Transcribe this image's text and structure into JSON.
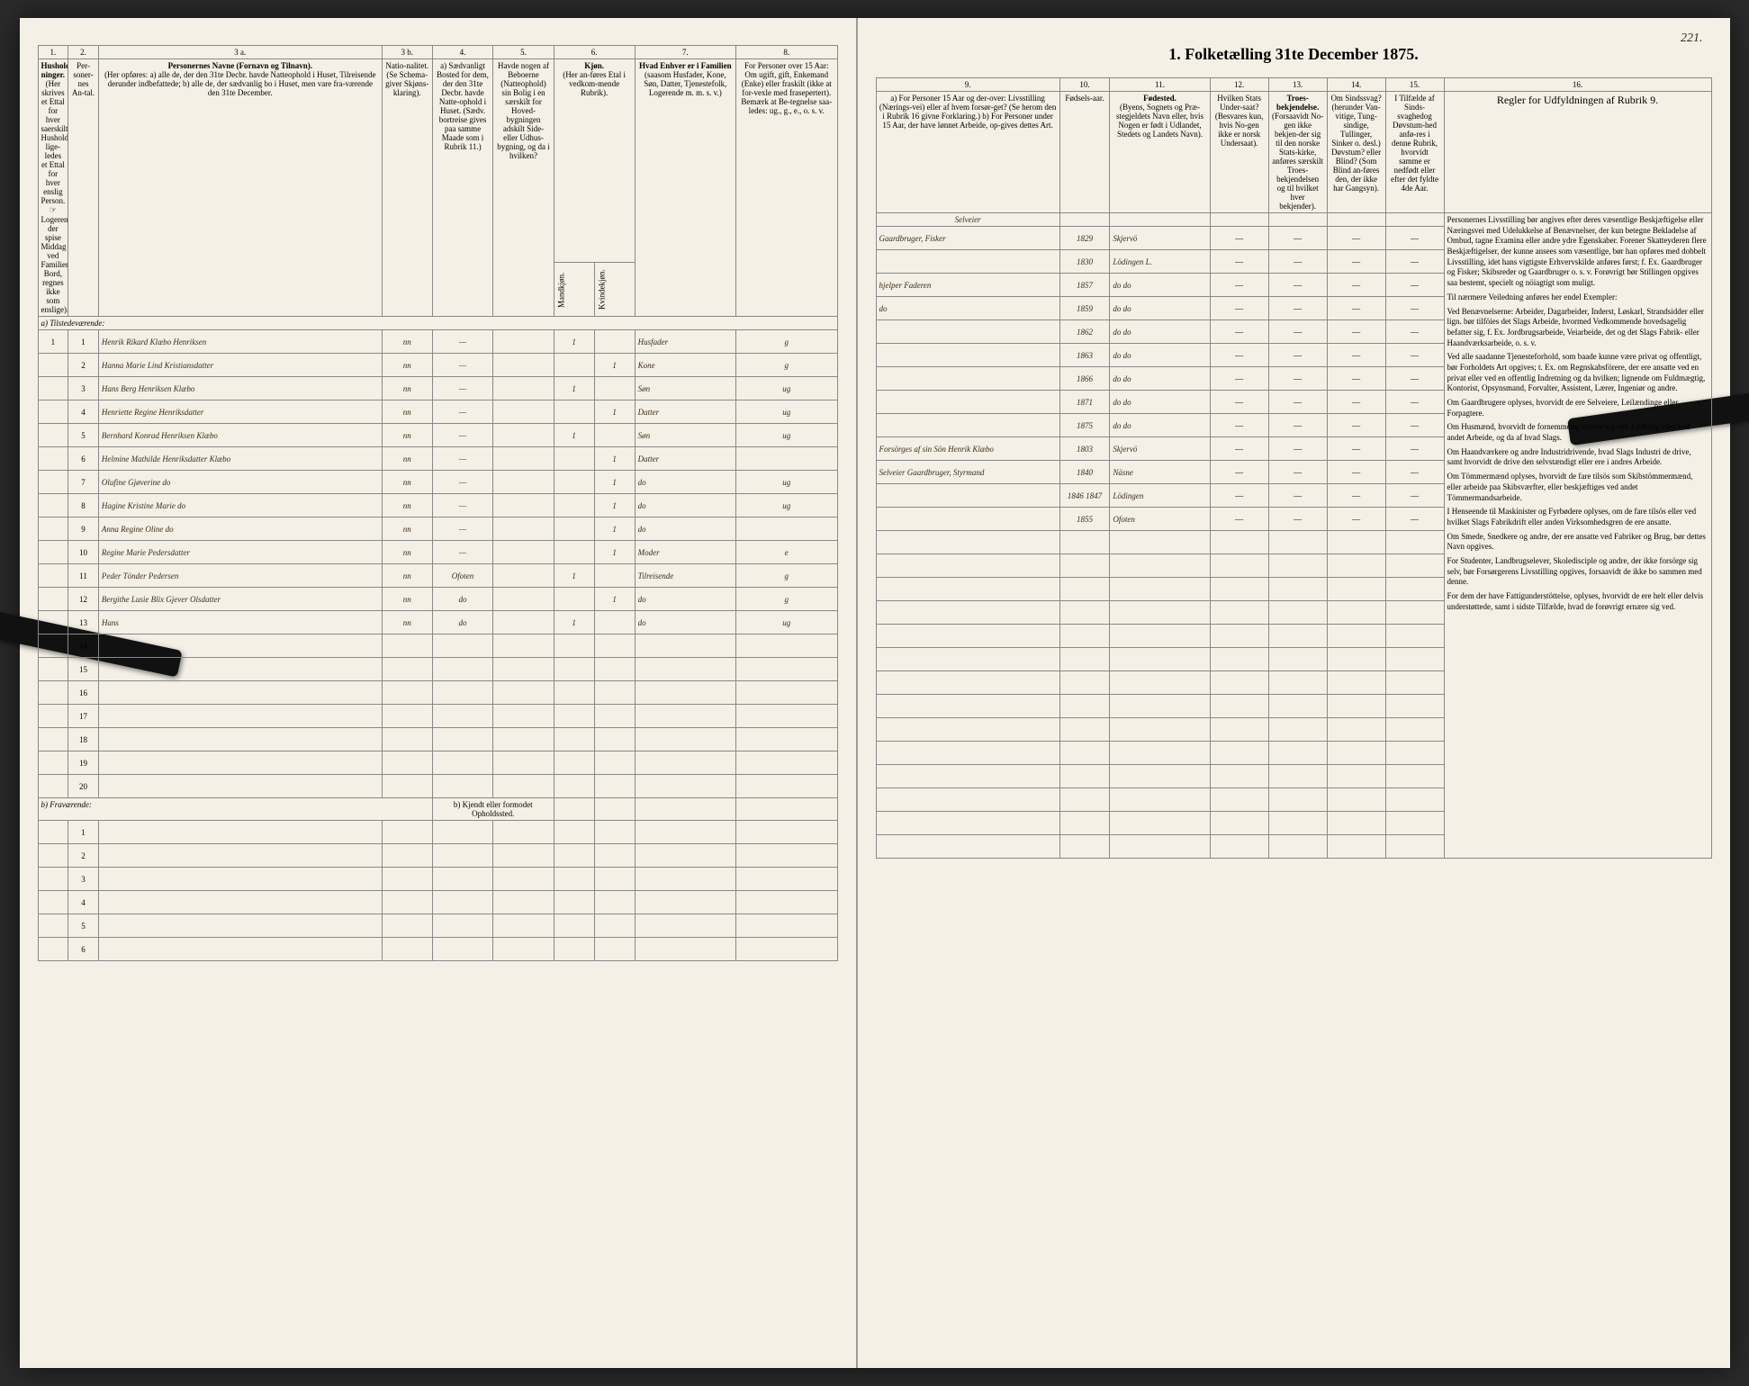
{
  "title": "1. Folketælling 31te December 1875.",
  "page_number": "221.",
  "columns_left": {
    "nums": [
      "1.",
      "2.",
      "3 a.",
      "3 b.",
      "4.",
      "5.",
      "6.",
      "7.",
      "8."
    ],
    "h1": "Hushold-\nninger.",
    "h1_sub": "(Her skrives et Ettal for hver saerskilt Husholdning; lige-ledes et Ettal for hver enslig Person.",
    "h1_note": "Logerende, der spise Middag ved Familiens Bord, regnes ikke som enslige).",
    "h2": "Per-soner-nes An-tal.",
    "h3a": "Personernes Navne (Fornavn og Tilnavn).",
    "h3a_sub": "(Her opføres:\na) alle de, der den 31te Decbr. havde Natteophold i Huset, Tilreisende derunder indbefattede;\nb) alle de, der sædvanlig bo i Huset, men vare fra-værende den 31te December.",
    "h3b": "Natio-nalitet.",
    "h3b_sub": "(Se Schema-giver Skjøns-klaring).",
    "h4": "a) Sædvanligt Bosted for dem, der den 31te Decbr. havde Natte-ophold i Huset. (Sædv. bortreise gives paa samme Maade som i Rubrik 11.)",
    "h5": "Havde nogen af Beboerne (Natteophold) sin Bolig i en særskilt for Hoved-bygningen adskilt Side- eller Udhus-bygning, og da i hvilken?",
    "h6": "Kjøn.",
    "h6_m": "Mandkjøn.",
    "h6_k": "Kvindekjøn.",
    "h7": "(Her an-føres Etal i vedkom-mende Rubrik).",
    "h7_main": "Hvad Enhver er i Familien",
    "h7_sub": "(saasom Husfader, Kone, Søn, Datter, Tjenestefolk, Logerende m. m. s. v.)",
    "h8": "For Personer over 15 Aar: Om ugift, gift, Enkemand (Enke) eller fraskilt (ikke at for-vexle med frasepertert). Bemærk at Be-tegnelse saa-ledes: ug., g., e., o. s. v."
  },
  "columns_right": {
    "nums": [
      "9.",
      "10.",
      "11.",
      "12.",
      "13.",
      "14.",
      "15.",
      "16."
    ],
    "h9": "a) For Personer 15 Aar og der-over: Livsstilling (Nærings-vei) eller af hvem forsør-get? (Se herom den i Rubrik 16 givne Forklaring.)\nb) For Personer under 15 Aar, der have lønnet Arbeide, op-gives dettes Art.",
    "h10": "Fødsels-aar.",
    "h11": "Fødested.",
    "h11_sub": "(Byens, Sognets og Præ-stegjeldets Navn eller, hvis Nogen er født i Udlandet, Stedets og Landets Navn).",
    "h12": "Hvilken Stats Under-saat?",
    "h12_sub": "(Besvares kun, hvis No-gen ikke er norsk Undersaat).",
    "h13": "Troes-bekjendelse.",
    "h13_sub": "(Forsaavidt No-gen ikke bekjen-der sig til den norske Stats-kirke, anføres særskilt Troes-bekjendelsen og til hvilket hver bekjender).",
    "h14": "Om Sindssvag? (herunder Van-vitige, Tung-sindige, Tullinger, Sinker o. desl.) Døvstum? eller Blind? (Som Blind an-føres den, der ikke har Gangsyn).",
    "h15": "I Tilfælde af Sinds-svaghedog Døvstum-hed anfø-res i denne Rubrik, hvorvidt samme er nedfødt eller efter det fyldte 4de Aar.",
    "h16": "Regler for Udfyldningen\naf\nRubrik 9."
  },
  "sections": {
    "present": "a) Tilstedeværende:",
    "absent": "b) Fraværende:",
    "absent_note": "b) Kjendt eller formodet Opholdssted."
  },
  "selveier": "Selveier",
  "rows": [
    {
      "h": "1",
      "n": "1",
      "name": "Henrik Rikard Klæbo Henriksen",
      "nat": "nn",
      "res": "—",
      "m": "1",
      "k": "",
      "fam": "Husfader",
      "civ": "g",
      "occ": "Gaardbruger, Fisker",
      "yr": "1829",
      "bp": "Skjervö"
    },
    {
      "h": "",
      "n": "2",
      "name": "Hanna Marie Lind Kristiansdatter",
      "nat": "nn",
      "res": "—",
      "m": "",
      "k": "1",
      "fam": "Kone",
      "civ": "g",
      "occ": "",
      "yr": "1830",
      "bp": "Lödingen L."
    },
    {
      "h": "",
      "n": "3",
      "name": "Hans Berg Henriksen Klæbo",
      "nat": "nn",
      "res": "—",
      "m": "1",
      "k": "",
      "fam": "Søn",
      "civ": "ug",
      "occ": "hjelper Faderen",
      "yr": "1857",
      "bp": "do   do"
    },
    {
      "h": "",
      "n": "4",
      "name": "Henriette Regine Henriksdatter",
      "nat": "nn",
      "res": "—",
      "m": "",
      "k": "1",
      "fam": "Datter",
      "civ": "ug",
      "occ": "do",
      "yr": "1859",
      "bp": "do   do"
    },
    {
      "h": "",
      "n": "5",
      "name": "Bernhard Konrad Henriksen Klæbo",
      "nat": "nn",
      "res": "—",
      "m": "1",
      "k": "",
      "fam": "Søn",
      "civ": "ug",
      "occ": "",
      "yr": "1862",
      "bp": "do   do"
    },
    {
      "h": "",
      "n": "6",
      "name": "Helmine Mathilde Henriksdatter Klæbo",
      "nat": "nn",
      "res": "—",
      "m": "",
      "k": "1",
      "fam": "Datter",
      "civ": "",
      "occ": "",
      "yr": "1863",
      "bp": "do   do"
    },
    {
      "h": "",
      "n": "7",
      "name": "Olufine Gjøverine   do",
      "nat": "nn",
      "res": "—",
      "m": "",
      "k": "1",
      "fam": "do",
      "civ": "ug",
      "occ": "",
      "yr": "1866",
      "bp": "do   do"
    },
    {
      "h": "",
      "n": "8",
      "name": "Hagine Kristine Marie   do",
      "nat": "nn",
      "res": "—",
      "m": "",
      "k": "1",
      "fam": "do",
      "civ": "ug",
      "occ": "",
      "yr": "1871",
      "bp": "do   do"
    },
    {
      "h": "",
      "n": "9",
      "name": "Anna Regine Oline   do",
      "nat": "nn",
      "res": "—",
      "m": "",
      "k": "1",
      "fam": "do",
      "civ": "",
      "occ": "",
      "yr": "1875",
      "bp": "do   do"
    },
    {
      "h": "",
      "n": "10",
      "name": "Regine Marie Pedersdatter",
      "nat": "nn",
      "res": "—",
      "m": "",
      "k": "1",
      "fam": "Moder",
      "civ": "e",
      "occ": "Forsörges af sin Sön Henrik Klæbo",
      "yr": "1803",
      "bp": "Skjervö"
    },
    {
      "h": "",
      "n": "11",
      "name": "Peder Tönder Pedersen",
      "nat": "nn",
      "res": "Ofoten",
      "m": "1",
      "k": "",
      "fam": "Tilreisende",
      "civ": "g",
      "occ": "Selveier Gaardbruger, Styrmand",
      "yr": "1840",
      "bp": "Näsne"
    },
    {
      "h": "",
      "n": "12",
      "name": "Bergithe Lusie Blix Gjever Olsdatter",
      "nat": "nn",
      "res": "do",
      "m": "",
      "k": "1",
      "fam": "do",
      "civ": "g",
      "occ": "",
      "yr": "1846 1847",
      "bp": "Lödingen"
    },
    {
      "h": "",
      "n": "13",
      "name": "Hans",
      "nat": "nn",
      "res": "do",
      "m": "1",
      "k": "",
      "fam": "do",
      "civ": "ug",
      "occ": "",
      "yr": "1855",
      "bp": "Ofoten"
    }
  ],
  "empty_present_rows": [
    "14",
    "15",
    "16",
    "17",
    "18",
    "19",
    "20"
  ],
  "empty_absent_rows": [
    "1",
    "2",
    "3",
    "4",
    "5",
    "6"
  ],
  "rules_text": [
    "Personernes Livsstilling bør angives efter deres væsentlige Beskjæftigelse eller Næringsvei med Udelukkelse af Benævnelser, der kun betegne Bekladelse af Ombud, tagne Examina eller andre ydre Egenskaber. Forener Skatteyderen flere Beskjæftigelser, der kunne ansees som væsentlige, bør han opføres med dobbelt Livsstilling, idet hans vigtigste Erhvervskilde anføres først; f. Ex. Gaardbruger og Fisker; Skibsreder og Gaardbruger o. s. v. Forøvrigt bør Stillingen opgives saa bestemt, specielt og nöiagtigt som muligt.",
    "Til nærmere Veiledning anføres her endel Exempler:",
    "Ved Benævnelserne: Arbeider, Dagarbeider, Inderst, Løskarl, Strandsidder eller lign. bør tilföies det Slags Arbeide, hvormed Vedkommende hovedsagelig befatter sig, f. Ex. Jordbrugsarbeide, Veiarbeide, det og det Slags Fabrik- eller Haandværksarbeide, o. s. v.",
    "Ved alle saadanne Tjenesteforhold, som baade kunne være privat og offentligt, bør Forholdets Art opgives; t. Ex. om Regnskabsförere, der ere ansatte ved en privat eller ved en offentlig Indretning og da hvilken; lignende om Fuldmægtig, Kontorist, Opsynsmand, Forvalter, Assistent, Lærer, Ingeniør og andre.",
    "Om Gaardbrugere oplyses, hvorvidt de ere Selveiere, Leilændinge eller Forpagtere.",
    "Om Husmænd, hvorvidt de fornemmelig ernære sig ved Jordbrug eller ved andet Arbeide, og da af hvad Slags.",
    "Om Haandværkere og andre Industridrivende, hvad Slags Industri de drive, samt hvorvidt de drive den selvstændigt eller ere i andres Arbeide.",
    "Om Tömmermænd oplyses, hvorvidt de fare tilsös som Skibstömmermænd, eller arbeide paa Skibsværfter, eller beskjæftiges ved andet Tömmermandsarbeide.",
    "I Henseende til Maskinister og Fyrbødere oplyses, om de fare tilsös eller ved hvilket Slags Fabrikdrift eller anden Virksomhedsgren de ere ansatte.",
    "Om Smede, Snedkere og andre, der ere ansatte ved Fabriker og Brug, bør dettes Navn opgives.",
    "For Studenter, Landbrugselever, Skoledisciple og andre, der ikke forsörge sig selv, bør Forsørgerens Livsstilling opgives, forsaavidt de ikke bo sammen med denne.",
    "For dem der have Fattigunderstöttelse, oplyses, hvorvidt de ere helt eller delvis understøttede, samt i sidste Tilfælde, hvad de forøvrigt ernære sig ved."
  ]
}
